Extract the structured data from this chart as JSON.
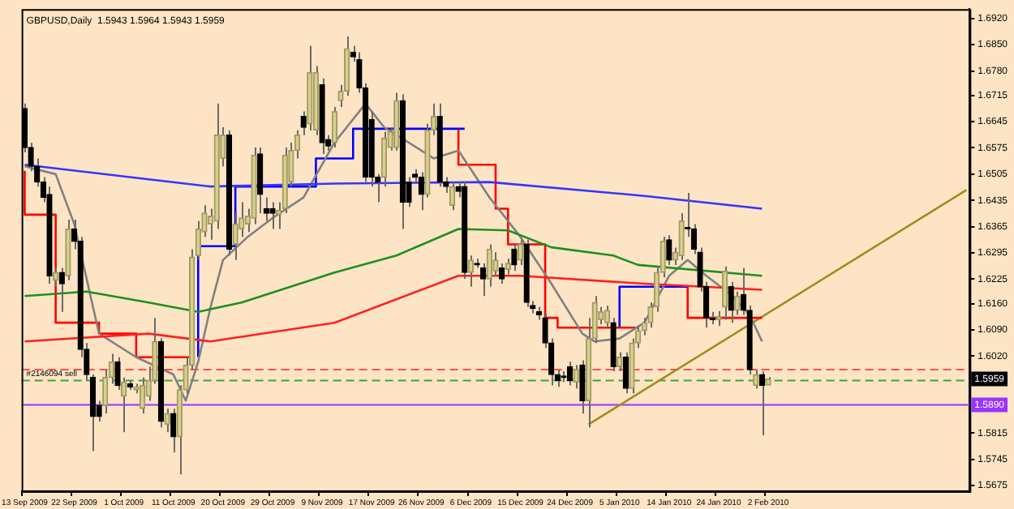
{
  "chart_data": {
    "type": "candlestick",
    "title": "GBPUSD,Daily  1.5943 1.5964 1.5943 1.5959",
    "categories": [
      "13 Sep 2009",
      null,
      null,
      null,
      null,
      null,
      null,
      null,
      "22 Sep 2009",
      null,
      null,
      null,
      null,
      null,
      null,
      null,
      "1 Oct 2009",
      null,
      null,
      null,
      null,
      null,
      null,
      null,
      "11 Oct 2009",
      null,
      null,
      null,
      null,
      null,
      null,
      null,
      "20 Oct 2009",
      null,
      null,
      null,
      null,
      null,
      null,
      null,
      "29 Oct 2009",
      null,
      null,
      null,
      null,
      null,
      null,
      null,
      "9 Nov 2009",
      null,
      null,
      null,
      null,
      null,
      null,
      null,
      "17 Nov 2009",
      null,
      null,
      null,
      null,
      null,
      null,
      null,
      "26 Nov 2009",
      null,
      null,
      null,
      null,
      null,
      null,
      null,
      "6 Dec 2009",
      null,
      null,
      null,
      null,
      null,
      null,
      null,
      "15 Dec 2009",
      null,
      null,
      null,
      null,
      null,
      null,
      null,
      "24 Dec 2009",
      null,
      null,
      null,
      null,
      null,
      null,
      null,
      "5 Jan 2010",
      null,
      null,
      null,
      null,
      null,
      null,
      null,
      "14 Jan 2010",
      null,
      null,
      null,
      null,
      null,
      null,
      null,
      "24 Jan 2010",
      null,
      null,
      null,
      null,
      null,
      null,
      null,
      "2 Feb 2010",
      null,
      null,
      null,
      null,
      null,
      null,
      null,
      null,
      null,
      null,
      null,
      null,
      null,
      null,
      null,
      null,
      null,
      null,
      null,
      null,
      null,
      null,
      null,
      null,
      null,
      null,
      null,
      null,
      null,
      null,
      null,
      null
    ],
    "ohlc": [
      [
        1.668,
        1.6693,
        1.6563,
        1.6576
      ],
      [
        1.6576,
        1.6589,
        1.6513,
        1.6526
      ],
      [
        1.6526,
        1.6547,
        1.6472,
        1.6484
      ],
      [
        1.6484,
        1.6497,
        1.643,
        1.6443
      ],
      [
        1.6451,
        1.6472,
        1.6213,
        1.6234
      ],
      [
        1.6222,
        1.6255,
        1.6205,
        1.6243
      ],
      [
        1.6243,
        1.6255,
        1.6138,
        1.6213
      ],
      [
        1.6234,
        1.6384,
        1.6222,
        1.6359
      ],
      [
        1.6359,
        1.6384,
        1.6305,
        1.6326
      ],
      [
        1.6326,
        1.6338,
        1.6017,
        1.6038
      ],
      [
        1.6038,
        1.6055,
        1.5955,
        1.5971
      ],
      [
        1.5963,
        1.5971,
        1.5767,
        1.5859
      ],
      [
        1.5888,
        1.5901,
        1.5846,
        1.5859
      ],
      [
        1.5888,
        1.5984,
        1.5867,
        1.5963
      ],
      [
        1.5963,
        1.6026,
        1.5946,
        1.6005
      ],
      [
        1.6005,
        1.6017,
        1.593,
        1.5942
      ],
      [
        1.5913,
        1.5963,
        1.5817,
        1.5951
      ],
      [
        1.5946,
        1.5955,
        1.593,
        1.5938
      ],
      [
        1.593,
        1.5946,
        1.5921,
        1.5938
      ],
      [
        1.588,
        1.5963,
        1.5867,
        1.5942
      ],
      [
        1.5913,
        1.5992,
        1.5901,
        1.5955
      ],
      [
        1.5955,
        1.6122,
        1.5946,
        1.6059
      ],
      [
        1.6059,
        1.6067,
        1.583,
        1.5846
      ],
      [
        1.5838,
        1.588,
        1.5817,
        1.5867
      ],
      [
        1.5867,
        1.588,
        1.5763,
        1.5805
      ],
      [
        1.5805,
        1.5942,
        1.5705,
        1.593
      ],
      [
        1.593,
        1.6017,
        1.5921,
        1.5996
      ],
      [
        1.5996,
        1.6305,
        1.5984,
        1.6284
      ],
      [
        1.6288,
        1.638,
        1.6276,
        1.6359
      ],
      [
        1.6351,
        1.6422,
        1.6338,
        1.6401
      ],
      [
        1.6372,
        1.6413,
        1.633,
        1.6393
      ],
      [
        1.638,
        1.6693,
        1.6359,
        1.6609
      ],
      [
        1.6547,
        1.663,
        1.6526,
        1.6609
      ],
      [
        1.6609,
        1.6622,
        1.6288,
        1.6305
      ],
      [
        1.6318,
        1.6401,
        1.6276,
        1.6372
      ],
      [
        1.6359,
        1.643,
        1.6338,
        1.6388
      ],
      [
        1.6372,
        1.6413,
        1.6351,
        1.6393
      ],
      [
        1.6388,
        1.6576,
        1.6372,
        1.6555
      ],
      [
        1.6559,
        1.6576,
        1.6401,
        1.6451
      ],
      [
        1.6413,
        1.6443,
        1.638,
        1.6401
      ],
      [
        1.6413,
        1.643,
        1.6359,
        1.6401
      ],
      [
        1.6397,
        1.643,
        1.6359,
        1.6409
      ],
      [
        1.6413,
        1.6576,
        1.6401,
        1.6555
      ],
      [
        1.6484,
        1.6589,
        1.6472,
        1.6568
      ],
      [
        1.6568,
        1.6622,
        1.6547,
        1.6609
      ],
      [
        1.6659,
        1.6672,
        1.6609,
        1.663
      ],
      [
        1.6639,
        1.6847,
        1.6622,
        1.6776
      ],
      [
        1.6622,
        1.6793,
        1.6609,
        1.6776
      ],
      [
        1.6743,
        1.676,
        1.6559,
        1.6589
      ],
      [
        1.6597,
        1.6609,
        1.6568,
        1.658
      ],
      [
        1.6589,
        1.6684,
        1.6576,
        1.6672
      ],
      [
        1.6701,
        1.6743,
        1.6684,
        1.6726
      ],
      [
        1.6726,
        1.6872,
        1.6714,
        1.6839
      ],
      [
        1.683,
        1.6847,
        1.6805,
        1.6818
      ],
      [
        1.681,
        1.683,
        1.6722,
        1.6735
      ],
      [
        1.6735,
        1.6747,
        1.6484,
        1.6497
      ],
      [
        1.6651,
        1.6672,
        1.6472,
        1.6497
      ],
      [
        1.6497,
        1.6505,
        1.643,
        1.6484
      ],
      [
        1.6497,
        1.6618,
        1.6472,
        1.6601
      ],
      [
        1.6576,
        1.663,
        1.6568,
        1.6618
      ],
      [
        1.6576,
        1.6722,
        1.6568,
        1.6701
      ],
      [
        1.6701,
        1.6718,
        1.6359,
        1.643
      ],
      [
        1.6484,
        1.6497,
        1.6418,
        1.643
      ],
      [
        1.6505,
        1.6518,
        1.6484,
        1.6497
      ],
      [
        1.6497,
        1.651,
        1.6409,
        1.6451
      ],
      [
        1.6451,
        1.6639,
        1.6443,
        1.6622
      ],
      [
        1.6622,
        1.6693,
        1.6609,
        1.6659
      ],
      [
        1.6659,
        1.6693,
        1.6472,
        1.6484
      ],
      [
        1.6484,
        1.6497,
        1.6455,
        1.6472
      ],
      [
        1.6422,
        1.6484,
        1.6409,
        1.6472
      ],
      [
        1.6472,
        1.6484,
        1.6443,
        1.6459
      ],
      [
        1.6472,
        1.6484,
        1.6226,
        1.6243
      ],
      [
        1.6243,
        1.6288,
        1.6205,
        1.6276
      ],
      [
        1.6267,
        1.628,
        1.6255,
        1.6263
      ],
      [
        1.6255,
        1.6267,
        1.618,
        1.6226
      ],
      [
        1.6226,
        1.6318,
        1.6205,
        1.6305
      ],
      [
        1.6247,
        1.6297,
        1.6234,
        1.6276
      ],
      [
        1.6255,
        1.6267,
        1.6213,
        1.6226
      ],
      [
        1.6251,
        1.628,
        1.6238,
        1.6267
      ],
      [
        1.6305,
        1.6318,
        1.6247,
        1.6263
      ],
      [
        1.6276,
        1.633,
        1.6263,
        1.6318
      ],
      [
        1.6318,
        1.633,
        1.6151,
        1.6163
      ],
      [
        1.6155,
        1.6167,
        1.6134,
        1.6147
      ],
      [
        1.6138,
        1.6151,
        1.6117,
        1.613
      ],
      [
        1.6122,
        1.6134,
        1.6042,
        1.6055
      ],
      [
        1.6055,
        1.6067,
        1.5942,
        1.5971
      ],
      [
        1.5971,
        1.5984,
        1.5938,
        1.5955
      ],
      [
        1.5967,
        1.598,
        1.5951,
        1.5963
      ],
      [
        1.5992,
        1.6005,
        1.5942,
        1.5955
      ],
      [
        1.5951,
        1.5996,
        1.5934,
        1.5984
      ],
      [
        1.5996,
        1.6009,
        1.5867,
        1.5901
      ],
      [
        1.5901,
        1.6122,
        1.583,
        1.6067
      ],
      [
        1.6067,
        1.618,
        1.6055,
        1.6163
      ],
      [
        1.6117,
        1.6151,
        1.6105,
        1.6138
      ],
      [
        1.6109,
        1.6155,
        1.6096,
        1.6142
      ],
      [
        1.6109,
        1.6122,
        1.598,
        1.5992
      ],
      [
        1.5992,
        1.603,
        1.598,
        1.6017
      ],
      [
        1.6017,
        1.603,
        1.5921,
        1.5934
      ],
      [
        1.5934,
        1.6067,
        1.5921,
        1.6055
      ],
      [
        1.6055,
        1.6101,
        1.6042,
        1.6088
      ],
      [
        1.6088,
        1.6122,
        1.6076,
        1.6109
      ],
      [
        1.6109,
        1.6163,
        1.6096,
        1.6151
      ],
      [
        1.6151,
        1.6255,
        1.6138,
        1.6243
      ],
      [
        1.6243,
        1.6338,
        1.623,
        1.6326
      ],
      [
        1.633,
        1.6342,
        1.6263,
        1.6276
      ],
      [
        1.6276,
        1.6309,
        1.6263,
        1.6297
      ],
      [
        1.6288,
        1.6401,
        1.6276,
        1.638
      ],
      [
        1.6363,
        1.6455,
        1.6338,
        1.6359
      ],
      [
        1.6359,
        1.6372,
        1.6292,
        1.6305
      ],
      [
        1.6297,
        1.6309,
        1.6192,
        1.6205
      ],
      [
        1.6205,
        1.6218,
        1.6096,
        1.6122
      ],
      [
        1.6121,
        1.6138,
        1.6105,
        1.6117
      ],
      [
        1.6117,
        1.614,
        1.61,
        1.6125
      ],
      [
        1.6151,
        1.6259,
        1.6117,
        1.6247
      ],
      [
        1.6205,
        1.6218,
        1.6109,
        1.6142
      ],
      [
        1.6142,
        1.6192,
        1.613,
        1.618
      ],
      [
        1.6184,
        1.6255,
        1.613,
        1.6142
      ],
      [
        1.6142,
        1.6155,
        1.5971,
        1.5984
      ],
      [
        1.5942,
        1.5984,
        1.5934,
        1.5971
      ],
      [
        1.5971,
        1.598,
        1.5809,
        1.5942
      ],
      [
        1.5943,
        1.5964,
        1.5943,
        1.5959
      ],
      null,
      null,
      null,
      null,
      null,
      null,
      null,
      null,
      null,
      null,
      null,
      null,
      null,
      null,
      null,
      null,
      null,
      null,
      null,
      null,
      null,
      null,
      null,
      null,
      null,
      null,
      null,
      null,
      null,
      null,
      null,
      null
    ],
    "series": [
      {
        "type": "line",
        "color": "#3535ff",
        "values": [
          1.653,
          null,
          null,
          null,
          null,
          null,
          null,
          null,
          null,
          null,
          null,
          null,
          null,
          null,
          null,
          1.6501,
          null,
          null,
          null,
          null,
          null,
          null,
          null,
          null,
          null,
          null,
          null,
          null,
          null,
          null,
          1.6472,
          null,
          null,
          null,
          null,
          null,
          null,
          null,
          null,
          null,
          null,
          null,
          null,
          null,
          null,
          null,
          null,
          null,
          null,
          null,
          1.648,
          null,
          null,
          null,
          null,
          null,
          null,
          null,
          null,
          null,
          null,
          null,
          null,
          null,
          null,
          null,
          null,
          null,
          null,
          null,
          null,
          null,
          null,
          null,
          null,
          1.6484,
          null,
          null,
          null,
          null,
          null,
          null,
          null,
          null,
          null,
          null,
          null,
          null,
          null,
          null,
          null,
          null,
          null,
          null,
          null,
          null,
          null,
          null,
          null,
          null,
          1.6447,
          null,
          null,
          null,
          null,
          null,
          null,
          null,
          null,
          null,
          null,
          null,
          null,
          null,
          null,
          null,
          null,
          null,
          null,
          1.6413,
          null,
          null,
          null,
          null,
          null,
          null,
          null,
          null,
          null,
          null,
          null,
          null,
          null,
          null,
          null,
          null,
          null,
          null,
          null,
          null,
          null,
          null,
          null,
          null,
          null,
          null,
          null,
          null,
          null,
          null,
          null,
          null,
          null
        ]
      },
      {
        "type": "line",
        "color": "#1f8f1f",
        "values": [
          1.618,
          null,
          null,
          null,
          null,
          null,
          null,
          null,
          null,
          null,
          1.6192,
          null,
          null,
          null,
          null,
          null,
          null,
          null,
          null,
          null,
          1.6163,
          null,
          null,
          null,
          null,
          null,
          null,
          null,
          1.6138,
          null,
          null,
          null,
          null,
          null,
          null,
          1.6163,
          null,
          null,
          null,
          null,
          null,
          null,
          null,
          null,
          null,
          null,
          null,
          null,
          null,
          null,
          1.6243,
          null,
          null,
          null,
          null,
          null,
          null,
          null,
          null,
          null,
          1.6288,
          null,
          null,
          null,
          null,
          null,
          null,
          null,
          null,
          null,
          1.6359,
          null,
          null,
          null,
          null,
          null,
          null,
          null,
          1.6355,
          null,
          null,
          null,
          null,
          null,
          null,
          1.631,
          null,
          null,
          null,
          null,
          null,
          null,
          null,
          null,
          null,
          1.6288,
          null,
          null,
          null,
          1.6263,
          null,
          null,
          null,
          null,
          null,
          null,
          null,
          null,
          null,
          null,
          null,
          null,
          null,
          null,
          null,
          null,
          null,
          null,
          null,
          1.6234,
          null,
          null,
          null,
          null,
          null,
          null,
          null,
          null,
          null,
          null,
          null,
          null,
          null,
          null,
          null,
          null,
          null,
          null,
          null,
          null,
          null,
          null,
          null,
          null,
          null,
          null,
          null,
          null,
          null,
          null,
          null,
          null,
          null
        ]
      },
      {
        "type": "line",
        "color": "#ff2020",
        "values": [
          1.6059,
          null,
          null,
          null,
          null,
          null,
          null,
          null,
          null,
          null,
          null,
          null,
          null,
          null,
          null,
          null,
          null,
          null,
          null,
          null,
          1.608,
          null,
          null,
          null,
          null,
          null,
          null,
          null,
          null,
          null,
          1.6059,
          null,
          null,
          null,
          null,
          null,
          null,
          null,
          null,
          null,
          null,
          null,
          null,
          null,
          null,
          null,
          null,
          null,
          null,
          null,
          1.6109,
          null,
          null,
          null,
          null,
          null,
          null,
          null,
          null,
          null,
          null,
          null,
          null,
          null,
          null,
          null,
          null,
          null,
          null,
          null,
          1.6234,
          null,
          null,
          null,
          null,
          null,
          null,
          null,
          null,
          null,
          1.6234,
          null,
          null,
          null,
          null,
          null,
          null,
          null,
          null,
          null,
          null,
          null,
          null,
          null,
          null,
          null,
          null,
          null,
          null,
          null,
          1.6213,
          null,
          null,
          null,
          null,
          null,
          null,
          null,
          null,
          null,
          null,
          null,
          null,
          null,
          null,
          null,
          null,
          null,
          null,
          1.6197,
          null,
          null,
          null,
          null,
          null,
          null,
          null,
          null,
          null,
          null,
          null,
          null,
          null,
          null,
          null,
          null,
          null,
          null,
          null,
          null,
          null,
          null,
          null,
          null,
          null,
          null,
          null,
          null,
          null,
          null,
          null,
          null,
          null
        ]
      },
      {
        "type": "line",
        "color": "#808080",
        "values": [
          1.6526,
          null,
          null,
          null,
          null,
          1.6505,
          null,
          null,
          1.6372,
          null,
          null,
          null,
          1.608,
          null,
          null,
          null,
          null,
          null,
          1.6017,
          null,
          null,
          null,
          null,
          null,
          1.5971,
          null,
          1.5901,
          null,
          1.6005,
          null,
          1.6151,
          null,
          1.6276,
          null,
          null,
          null,
          1.6338,
          null,
          null,
          null,
          1.6388,
          null,
          null,
          null,
          null,
          1.6443,
          null,
          null,
          null,
          null,
          1.6589,
          null,
          null,
          null,
          null,
          1.6693,
          null,
          null,
          1.663,
          null,
          null,
          null,
          1.6589,
          null,
          null,
          null,
          1.6547,
          null,
          null,
          null,
          1.6568,
          null,
          null,
          null,
          null,
          1.6443,
          null,
          null,
          null,
          null,
          1.6338,
          null,
          null,
          null,
          null,
          1.6213,
          null,
          null,
          null,
          null,
          1.608,
          null,
          1.6059,
          null,
          null,
          null,
          1.6067,
          null,
          null,
          null,
          1.6109,
          null,
          null,
          null,
          1.6234,
          null,
          null,
          1.6276,
          null,
          null,
          1.6234,
          null,
          null,
          null,
          1.6184,
          null,
          null,
          1.613,
          null,
          1.6059,
          null,
          null,
          null,
          null,
          null,
          null,
          null,
          null,
          null,
          null,
          null,
          null,
          null,
          null,
          null,
          null,
          null,
          null,
          null,
          null,
          null,
          null,
          null,
          null,
          null,
          null,
          null,
          null,
          null,
          null,
          null,
          null,
          null
        ]
      },
      {
        "type": "step",
        "color": "#ff0000",
        "values": [
          1.6514,
          null,
          null,
          null,
          null,
          1.6397,
          null,
          null,
          null,
          null,
          null,
          null,
          1.6109,
          null,
          null,
          null,
          null,
          null,
          1.608,
          null,
          null,
          null,
          null,
          1.6017,
          null,
          null,
          null,
          1.6017,
          null,
          null,
          null,
          null,
          null,
          null,
          null,
          null,
          null,
          null,
          null,
          null,
          null,
          null,
          null,
          null,
          null,
          null,
          null,
          null,
          null,
          null,
          null,
          null,
          null,
          null,
          null,
          null,
          null,
          null,
          null,
          null,
          null,
          null,
          null,
          null,
          null,
          null,
          null,
          null,
          null,
          null,
          null,
          null,
          null,
          null,
          null,
          null,
          null,
          null,
          null,
          null,
          null,
          null,
          null,
          null,
          null,
          null,
          null,
          null,
          null,
          null,
          null,
          null,
          null,
          null,
          null,
          null,
          null,
          null,
          null,
          null,
          null,
          null,
          null,
          null,
          null,
          null,
          null,
          null,
          null,
          null,
          null,
          null,
          null,
          null,
          null,
          null,
          null,
          null,
          null,
          null,
          null,
          null,
          null,
          null,
          null,
          null,
          null,
          null,
          null,
          null,
          null,
          null,
          null,
          null,
          null,
          null,
          null,
          null,
          null,
          null,
          null,
          null,
          null,
          null,
          null,
          null,
          null,
          null,
          null,
          null,
          null,
          null,
          null
        ]
      },
      {
        "type": "step",
        "color": "#0000ff",
        "values": [
          null,
          null,
          null,
          null,
          null,
          null,
          null,
          null,
          null,
          null,
          null,
          null,
          null,
          null,
          null,
          null,
          null,
          null,
          null,
          null,
          null,
          null,
          null,
          null,
          null,
          null,
          null,
          null,
          1.6017,
          null,
          null,
          null,
          null,
          null,
          1.6313,
          null,
          null,
          null,
          null,
          null,
          null,
          null,
          null,
          null,
          null,
          null,
          null,
          1.6472,
          null,
          null,
          null,
          null,
          null,
          1.6547,
          null,
          null,
          1.6626,
          null,
          null,
          null,
          null,
          null,
          null,
          null,
          null,
          null,
          null,
          null,
          null,
          null,
          null,
          1.6626,
          null,
          null,
          null,
          null,
          null,
          null,
          null,
          null,
          null,
          null,
          null,
          null,
          null,
          null,
          null,
          null,
          null,
          null,
          null,
          null,
          null,
          null,
          null,
          null,
          null,
          null,
          null,
          null,
          null,
          null,
          null,
          null,
          null,
          null,
          null,
          null,
          null,
          null,
          null,
          null,
          null,
          null,
          null,
          null,
          null,
          null,
          null,
          null,
          null,
          null,
          null,
          null,
          null,
          null,
          null,
          null,
          null,
          null,
          null,
          null,
          null,
          null,
          null,
          null,
          null,
          null,
          null,
          null,
          null,
          null,
          null,
          null,
          null,
          null,
          null,
          null,
          null,
          null,
          null,
          null,
          null
        ]
      },
      {
        "type": "step",
        "color": "#ff0000",
        "values": [
          null,
          null,
          null,
          null,
          null,
          null,
          null,
          null,
          null,
          null,
          null,
          null,
          null,
          null,
          null,
          null,
          null,
          null,
          null,
          null,
          null,
          null,
          null,
          null,
          null,
          null,
          null,
          null,
          null,
          null,
          null,
          null,
          null,
          null,
          null,
          null,
          null,
          null,
          null,
          null,
          null,
          null,
          null,
          null,
          null,
          null,
          null,
          null,
          null,
          null,
          null,
          null,
          null,
          null,
          null,
          null,
          null,
          null,
          null,
          null,
          null,
          null,
          null,
          null,
          null,
          null,
          null,
          null,
          null,
          null,
          1.6626,
          null,
          null,
          null,
          null,
          null,
          1.653,
          null,
          1.6413,
          null,
          null,
          null,
          null,
          null,
          1.6318,
          null,
          1.6122,
          1.6096,
          null,
          null,
          null,
          null,
          null,
          null,
          null,
          null,
          null,
          null,
          null,
          1.6096,
          null,
          null,
          null,
          null,
          null,
          null,
          null,
          null,
          null,
          null,
          null,
          null,
          null,
          null,
          null,
          null,
          null,
          null,
          null,
          null,
          null,
          null,
          null,
          null,
          null,
          null,
          null,
          null,
          null,
          null,
          null,
          null,
          null,
          null,
          null,
          null,
          null,
          null,
          null,
          null,
          null,
          null,
          null,
          null,
          null,
          null,
          null,
          null,
          null,
          null,
          null,
          null,
          null
        ]
      },
      {
        "type": "step",
        "color": "#0000ff",
        "values": [
          null,
          null,
          null,
          null,
          null,
          null,
          null,
          null,
          null,
          null,
          null,
          null,
          null,
          null,
          null,
          null,
          null,
          null,
          null,
          null,
          null,
          null,
          null,
          null,
          null,
          null,
          null,
          null,
          null,
          null,
          null,
          null,
          null,
          null,
          null,
          null,
          null,
          null,
          null,
          null,
          null,
          null,
          null,
          null,
          null,
          null,
          null,
          null,
          null,
          null,
          null,
          null,
          null,
          null,
          null,
          null,
          null,
          null,
          null,
          null,
          null,
          null,
          null,
          null,
          null,
          null,
          null,
          null,
          null,
          null,
          null,
          null,
          null,
          null,
          null,
          null,
          null,
          null,
          null,
          null,
          null,
          null,
          null,
          null,
          null,
          null,
          null,
          null,
          null,
          null,
          null,
          null,
          null,
          null,
          null,
          null,
          1.6096,
          null,
          null,
          null,
          1.6205,
          null,
          null,
          null,
          null,
          null,
          null,
          1.6205,
          null,
          null,
          null,
          null,
          null,
          null,
          null,
          null,
          null,
          null,
          null,
          null,
          null,
          null,
          null,
          null,
          null,
          null,
          null,
          null,
          null,
          null,
          null,
          null,
          null,
          null,
          null,
          null,
          null,
          null,
          null,
          null,
          null,
          null,
          null,
          null,
          null,
          null,
          null,
          null,
          null,
          null,
          null,
          null,
          null
        ]
      },
      {
        "type": "step",
        "color": "#ff0000",
        "values": [
          null,
          null,
          null,
          null,
          null,
          null,
          null,
          null,
          null,
          null,
          null,
          null,
          null,
          null,
          null,
          null,
          null,
          null,
          null,
          null,
          null,
          null,
          null,
          null,
          null,
          null,
          null,
          null,
          null,
          null,
          null,
          null,
          null,
          null,
          null,
          null,
          null,
          null,
          null,
          null,
          null,
          null,
          null,
          null,
          null,
          null,
          null,
          null,
          null,
          null,
          null,
          null,
          null,
          null,
          null,
          null,
          null,
          null,
          null,
          null,
          null,
          null,
          null,
          null,
          null,
          null,
          null,
          null,
          null,
          null,
          null,
          null,
          null,
          null,
          null,
          null,
          null,
          null,
          null,
          null,
          null,
          null,
          null,
          null,
          null,
          null,
          null,
          null,
          null,
          null,
          null,
          null,
          null,
          null,
          null,
          null,
          null,
          null,
          null,
          null,
          null,
          null,
          null,
          null,
          null,
          null,
          null,
          1.6205,
          null,
          null,
          null,
          null,
          null,
          null,
          null,
          null,
          null,
          1.6122,
          null,
          1.6122,
          null,
          null,
          null,
          null,
          null,
          null,
          null,
          null,
          null,
          null,
          null,
          null,
          null,
          null,
          null,
          null,
          null,
          null,
          null,
          null,
          null,
          null,
          null,
          null,
          null,
          null,
          null,
          null,
          null,
          null,
          null,
          null,
          null
        ]
      },
      {
        "type": "line",
        "color": "#a08c1e",
        "values": [
          null,
          null,
          null,
          null,
          null,
          null,
          null,
          null,
          null,
          null,
          null,
          null,
          null,
          null,
          null,
          null,
          null,
          null,
          null,
          null,
          null,
          null,
          null,
          null,
          null,
          null,
          null,
          null,
          null,
          null,
          null,
          null,
          null,
          null,
          null,
          null,
          null,
          null,
          null,
          null,
          null,
          null,
          null,
          null,
          null,
          null,
          null,
          null,
          null,
          null,
          null,
          null,
          null,
          null,
          null,
          null,
          null,
          null,
          null,
          null,
          null,
          null,
          null,
          null,
          null,
          null,
          null,
          null,
          null,
          null,
          null,
          null,
          null,
          null,
          null,
          null,
          null,
          null,
          null,
          null,
          null,
          null,
          null,
          null,
          null,
          null,
          null,
          null,
          null,
          null,
          null,
          1.5838,
          null,
          null,
          null,
          null,
          null,
          null,
          null,
          null,
          null,
          null,
          null,
          null,
          null,
          null,
          null,
          null,
          null,
          null,
          null,
          null,
          null,
          null,
          null,
          null,
          null,
          null,
          null,
          null,
          null,
          null,
          null,
          null,
          null,
          null,
          null,
          null,
          null,
          null,
          null,
          null,
          null,
          null,
          null,
          null,
          null,
          null,
          null,
          null,
          null,
          null,
          null,
          null,
          null,
          null,
          null,
          null,
          null,
          null,
          null,
          null,
          1.6463
        ]
      }
    ],
    "ylim": [
      1.566,
      1.6945
    ],
    "yticks": [
      {
        "value": 1.5675,
        "label": "1.5675"
      },
      {
        "value": 1.5745,
        "label": "1.5745"
      },
      {
        "value": 1.5815,
        "label": "1.5815"
      },
      {
        "value": 1.602,
        "label": "1.6020"
      },
      {
        "value": 1.609,
        "label": "1.6090"
      },
      {
        "value": 1.616,
        "label": "1.6160"
      },
      {
        "value": 1.6225,
        "label": "1.6225"
      },
      {
        "value": 1.6295,
        "label": "1.6295"
      },
      {
        "value": 1.6365,
        "label": "1.6365"
      },
      {
        "value": 1.6435,
        "label": "1.6435"
      },
      {
        "value": 1.6505,
        "label": "1.6505"
      },
      {
        "value": 1.6575,
        "label": "1.6575"
      },
      {
        "value": 1.6645,
        "label": "1.6645"
      },
      {
        "value": 1.6715,
        "label": "1.6715"
      },
      {
        "value": 1.678,
        "label": "1.6780"
      },
      {
        "value": 1.685,
        "label": "1.6850"
      },
      {
        "value": 1.692,
        "label": "1.6920"
      }
    ],
    "ref_lines": [
      {
        "axis": "y",
        "value": 1.5984,
        "color": "#ff5050",
        "line_style": "dashed"
      },
      {
        "axis": "y",
        "value": 1.5955,
        "label": "#2146094 sell",
        "color": "#40a040",
        "line_style": "dashed"
      },
      {
        "axis": "y",
        "value": 1.589,
        "label": "1.5890",
        "color": "#9933ff",
        "line_style": "solid"
      }
    ],
    "annotations": [
      {
        "text": "1.5959",
        "y": 1.5959
      }
    ]
  }
}
